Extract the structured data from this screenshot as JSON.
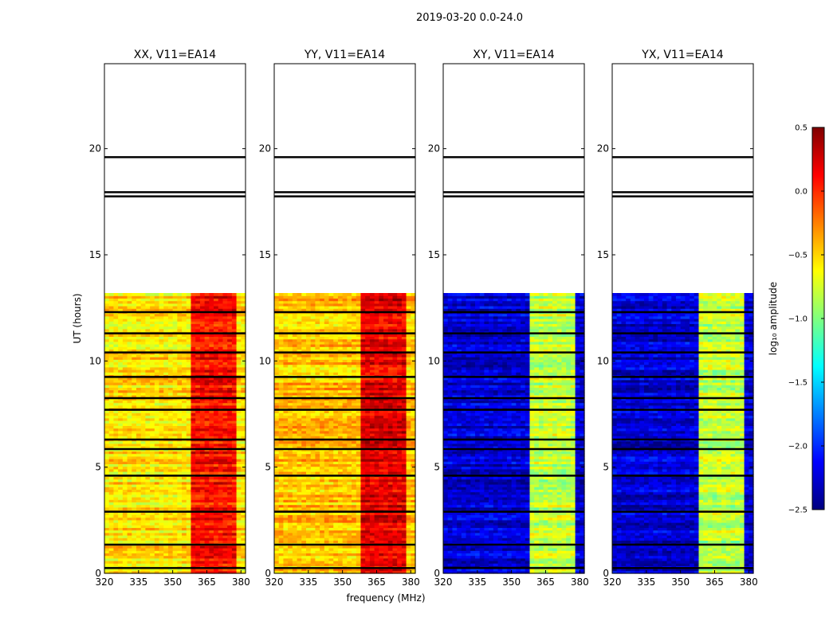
{
  "figure": {
    "title": "2019-03-20 0.0-24.0"
  },
  "shared_axes": {
    "xlabel": "frequency (MHz)",
    "ylabel": "UT (hours)",
    "x_ticks": [
      "320",
      "335",
      "350",
      "365",
      "380"
    ],
    "y_ticks": [
      "0",
      "5",
      "10",
      "15",
      "20"
    ]
  },
  "colorbar": {
    "label": "log₁₀ amplitude",
    "ticks": [
      "0.5",
      "0.0",
      "−0.5",
      "−1.0",
      "−1.5",
      "−2.0",
      "−2.5"
    ],
    "colormap": [
      "#00007f",
      "#0000ff",
      "#007fff",
      "#00ffff",
      "#7fff7f",
      "#ffff00",
      "#ff7f00",
      "#ff0000",
      "#7f0000"
    ]
  },
  "chart_data": [
    {
      "type": "heatmap",
      "title": "XX, V11=EA14",
      "xlim": [
        320,
        382
      ],
      "ylim": [
        0,
        24
      ],
      "clim": [
        -2.5,
        0.5
      ],
      "observed_ut_range": [
        0,
        13.2
      ],
      "rfi_band_mhz": [
        359,
        378
      ],
      "typical_value": -0.55,
      "band_value": 0.1,
      "flagged_ut_hours": [
        0.25,
        1.35,
        2.9,
        4.6,
        5.85,
        6.3,
        7.7,
        8.25,
        9.25,
        10.4,
        11.3,
        12.3,
        17.75,
        17.95,
        19.6
      ]
    },
    {
      "type": "heatmap",
      "title": "YY, V11=EA14",
      "xlim": [
        320,
        382
      ],
      "ylim": [
        0,
        24
      ],
      "clim": [
        -2.5,
        0.5
      ],
      "observed_ut_range": [
        0,
        13.2
      ],
      "rfi_band_mhz": [
        359,
        378
      ],
      "typical_value": -0.45,
      "band_value": 0.2,
      "flagged_ut_hours": [
        0.25,
        1.35,
        2.9,
        4.6,
        5.85,
        6.3,
        7.7,
        8.25,
        9.25,
        10.4,
        11.3,
        12.3,
        17.75,
        17.95,
        19.6
      ]
    },
    {
      "type": "heatmap",
      "title": "XY, V11=EA14",
      "xlim": [
        320,
        382
      ],
      "ylim": [
        0,
        24
      ],
      "clim": [
        -2.5,
        0.5
      ],
      "observed_ut_range": [
        0,
        13.2
      ],
      "rfi_band_mhz": [
        359,
        378
      ],
      "typical_value": -2.25,
      "band_value": -0.8,
      "flagged_ut_hours": [
        0.25,
        1.35,
        2.9,
        4.6,
        5.85,
        6.3,
        7.7,
        8.25,
        9.25,
        10.4,
        11.3,
        12.3,
        17.75,
        17.95,
        19.6
      ]
    },
    {
      "type": "heatmap",
      "title": "YX, V11=EA14",
      "xlim": [
        320,
        382
      ],
      "ylim": [
        0,
        24
      ],
      "clim": [
        -2.5,
        0.5
      ],
      "observed_ut_range": [
        0,
        13.2
      ],
      "rfi_band_mhz": [
        359,
        378
      ],
      "typical_value": -2.25,
      "band_value": -0.8,
      "flagged_ut_hours": [
        0.25,
        1.35,
        2.9,
        4.6,
        5.85,
        6.3,
        7.7,
        8.25,
        9.25,
        10.4,
        11.3,
        12.3,
        17.75,
        17.95,
        19.6
      ]
    }
  ]
}
